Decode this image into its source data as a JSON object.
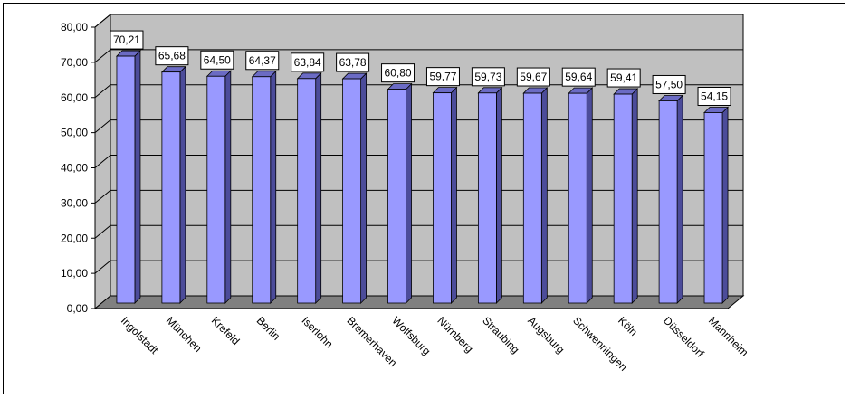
{
  "chart_data": {
    "type": "bar",
    "categories": [
      "Ingolstadt",
      "München",
      "Krefeld",
      "Berlin",
      "Iserlohn",
      "Bremerhaven",
      "Wolfsburg",
      "Nürnberg",
      "Straubing",
      "Augsburg",
      "Schwenningen",
      "Köln",
      "Düsseldorf",
      "Mannheim"
    ],
    "values": [
      70.21,
      65.68,
      64.5,
      64.37,
      63.84,
      63.78,
      60.8,
      59.77,
      59.73,
      59.67,
      59.64,
      59.41,
      57.5,
      54.15
    ],
    "data_labels": [
      "70,21",
      "65,68",
      "64,50",
      "64,37",
      "63,84",
      "63,78",
      "60,80",
      "59,77",
      "59,73",
      "59,67",
      "59,64",
      "59,41",
      "57,50",
      "54,15"
    ],
    "y_ticks": [
      "0,00",
      "10,00",
      "20,00",
      "30,00",
      "40,00",
      "50,00",
      "60,00",
      "70,00",
      "80,00"
    ],
    "ylim": [
      0,
      80
    ],
    "title": "",
    "xlabel": "",
    "ylabel": "",
    "grid": true,
    "legend": "none",
    "style": "3d-column",
    "colors": {
      "bar_front": "#9999ff",
      "bar_side": "#4c4c9a",
      "bar_top": "#6b6bc4",
      "plot_wall": "#c0c0c0",
      "plot_floor": "#808080",
      "gridline": "#000000",
      "label_box": "#ffffff"
    }
  }
}
